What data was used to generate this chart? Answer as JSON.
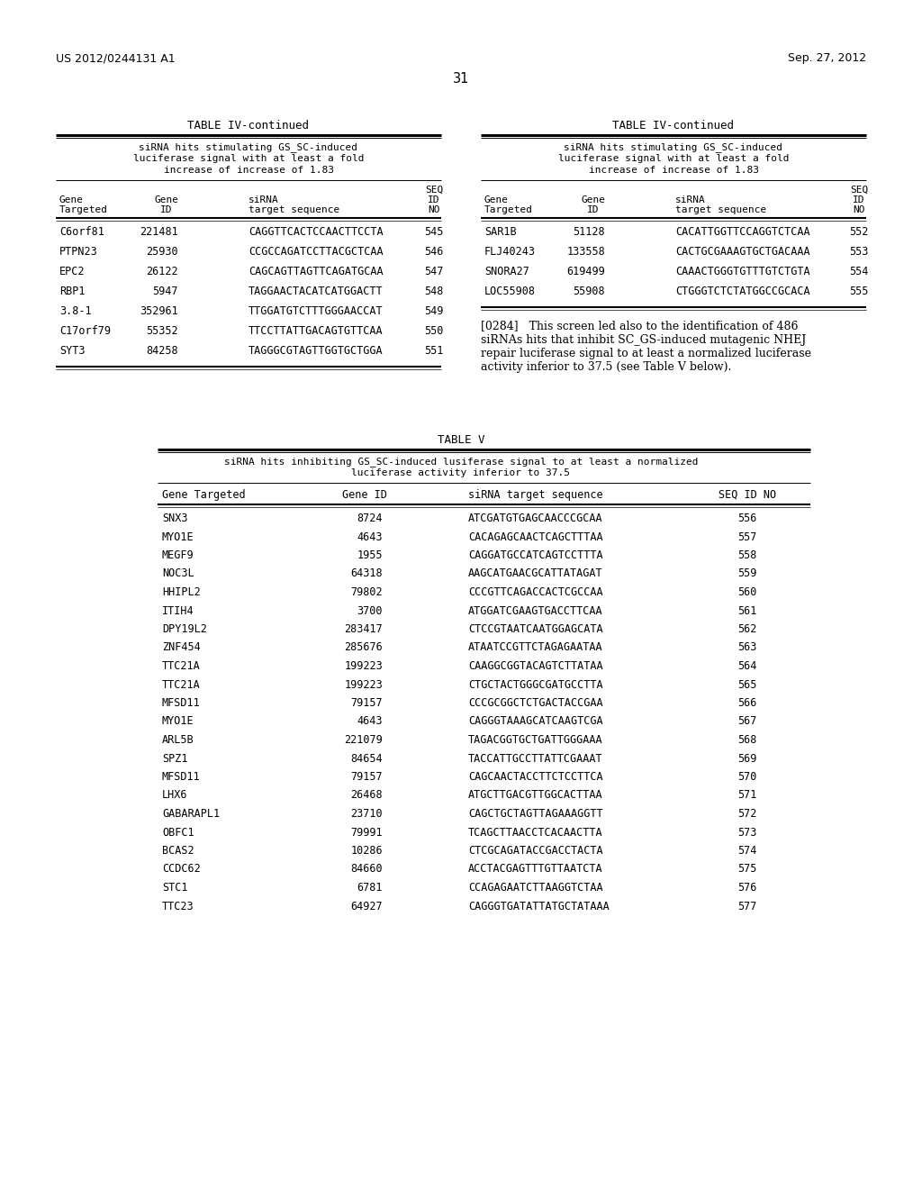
{
  "page_left": "US 2012/0244131 A1",
  "page_right": "Sep. 27, 2012",
  "page_number": "31",
  "bg_color": "#ffffff",
  "table4_left_title": "TABLE IV-continued",
  "table4_left_subtitle": "siRNA hits stimulating GS_SC-induced\nluciferase signal with at least a fold\nincrease of increase of 1.83",
  "table4_left_rows": [
    [
      "C6orf81",
      "221481",
      "CAGGTTCACTCCAACTTCCTA",
      "545"
    ],
    [
      "PTPN23",
      "25930",
      "CCGCCAGATCCTTACGCTCAA",
      "546"
    ],
    [
      "EPC2",
      "26122",
      "CAGCAGTTAGTTCAGATGCAA",
      "547"
    ],
    [
      "RBP1",
      "5947",
      "TAGGAACTACATCATGGACTT",
      "548"
    ],
    [
      "3.8-1",
      "352961",
      "TTGGATGTCTTTGGGAACCAT",
      "549"
    ],
    [
      "C17orf79",
      "55352",
      "TTCCTTATTGACAGTGTTCAA",
      "550"
    ],
    [
      "SYT3",
      "84258",
      "TAGGGCGTAGTTGGTGCTGGA",
      "551"
    ]
  ],
  "table4_right_title": "TABLE IV-continued",
  "table4_right_subtitle": "siRNA hits stimulating GS_SC-induced\nluciferase signal with at least a fold\nincrease of increase of 1.83",
  "table4_right_rows": [
    [
      "SAR1B",
      "51128",
      "CACATTGGTTCCAGGTCTCAA",
      "552"
    ],
    [
      "FLJ40243",
      "133558",
      "CACTGCGAAAGTGCTGACAAA",
      "553"
    ],
    [
      "SNORA27",
      "619499",
      "CAAACTGGGTGTTTGTCTGTA",
      "554"
    ],
    [
      "LOC55908",
      "55908",
      "CTGGGTCTCTATGGCCGCACA",
      "555"
    ]
  ],
  "paragraph_0284": "[0284]   This screen led also to the identification of 486 siRNAs hits that inhibit SC_GS-induced mutagenic NHEJ repair luciferase signal to at least a normalized luciferase activity inferior to 37.5 (see Table V below).",
  "table5_title": "TABLE V",
  "table5_subtitle": "siRNA hits inhibiting GS_SC-induced lusiferase signal to at least a normalized\nluciferase activity inferior to 37.5",
  "table5_rows": [
    [
      "SNX3",
      "8724",
      "ATCGATGTGAGCAACCCGCAA",
      "556"
    ],
    [
      "MYO1E",
      "4643",
      "CACAGAGCAACTCAGCTTTAA",
      "557"
    ],
    [
      "MEGF9",
      "1955",
      "CAGGATGCCATCAGTCCTTTA",
      "558"
    ],
    [
      "NOC3L",
      "64318",
      "AAGCATGAACGCATTATAGAT",
      "559"
    ],
    [
      "HHIPL2",
      "79802",
      "CCCGTTCAGACCACTCGCCAA",
      "560"
    ],
    [
      "ITIH4",
      "3700",
      "ATGGATCGAAGTGACCTTCAA",
      "561"
    ],
    [
      "DPY19L2",
      "283417",
      "CTCCGTAATCAATGGAGCATA",
      "562"
    ],
    [
      "ZNF454",
      "285676",
      "ATAATCCGTTCTAGAGAATAA",
      "563"
    ],
    [
      "TTC21A",
      "199223",
      "CAAGGCGGTACAGTCTTATAA",
      "564"
    ],
    [
      "TTC21A",
      "199223",
      "CTGCTACTGGGCGATGCCTTA",
      "565"
    ],
    [
      "MFSD11",
      "79157",
      "CCCGCGGCTCTGACTACCGAA",
      "566"
    ],
    [
      "MYO1E",
      "4643",
      "CAGGGTAAAGCATCAAGTCGA",
      "567"
    ],
    [
      "ARL5B",
      "221079",
      "TAGACGGTGCTGATTGGGAAA",
      "568"
    ],
    [
      "SPZ1",
      "84654",
      "TACCATTGCCTTATTCGAAAT",
      "569"
    ],
    [
      "MFSD11",
      "79157",
      "CAGCAACTACCTTCTCCTTCA",
      "570"
    ],
    [
      "LHX6",
      "26468",
      "ATGCTTGACGTTGGCACTTAA",
      "571"
    ],
    [
      "GABARAPL1",
      "23710",
      "CAGCTGCTAGTTAGAAAGGTT",
      "572"
    ],
    [
      "OBFC1",
      "79991",
      "TCAGCTTAACCTCACAACTTA",
      "573"
    ],
    [
      "BCAS2",
      "10286",
      "CTCGCAGATACCGACCTACTA",
      "574"
    ],
    [
      "CCDC62",
      "84660",
      "ACCTACGAGTTTGTTAATCTA",
      "575"
    ],
    [
      "STC1",
      "6781",
      "CCAGAGAATCTTAAGGTCTAA",
      "576"
    ],
    [
      "TTC23",
      "64927",
      "CAGGGTGATATTATGCTATAAA",
      "577"
    ]
  ]
}
